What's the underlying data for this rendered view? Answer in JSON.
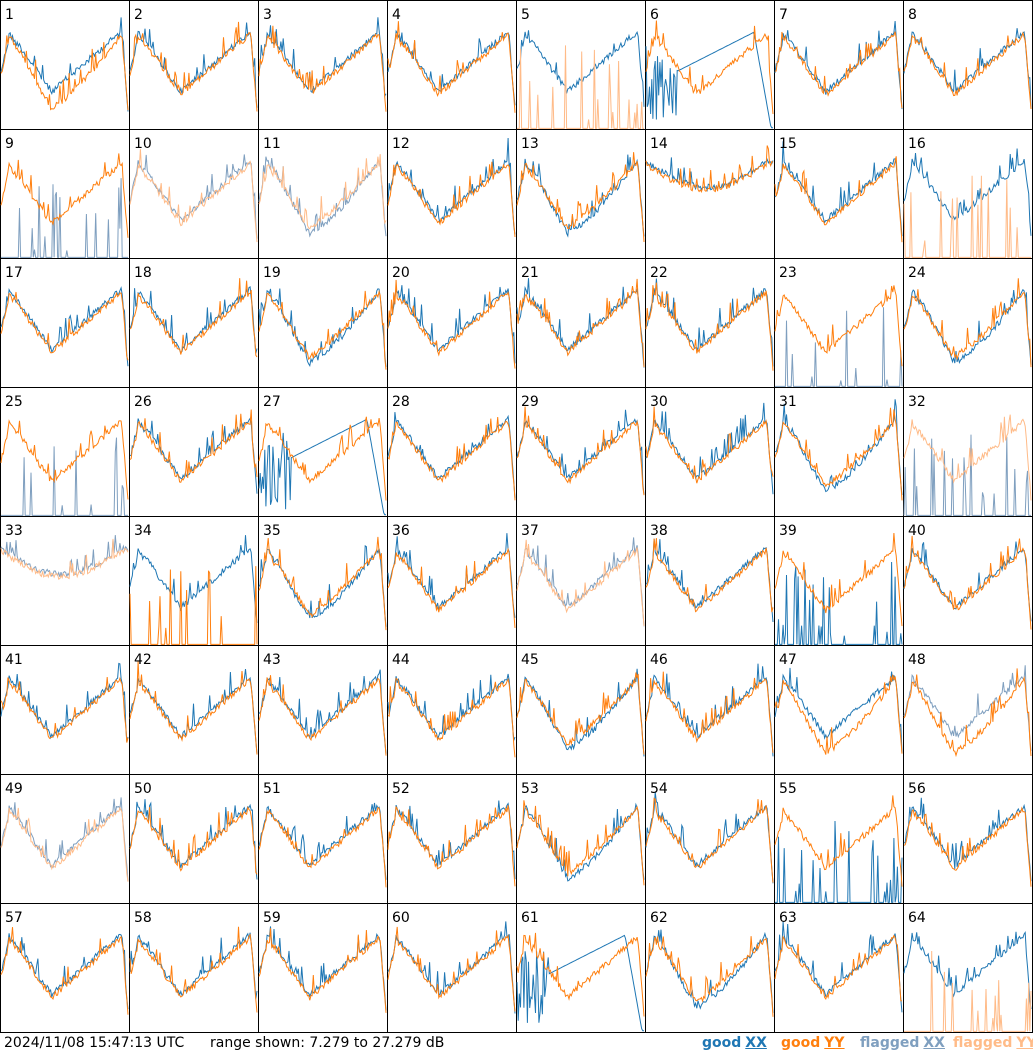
{
  "footer": {
    "timestamp": "2024/11/08 15:47:13 UTC",
    "range": "range shown: 7.279 to 27.279 dB",
    "legend": [
      {
        "word": "good",
        "pol": "XX",
        "color": "#1f77b4"
      },
      {
        "word": "good",
        "pol": "YY",
        "color": "#ff7f0e"
      },
      {
        "word": "flagged",
        "pol": "XX",
        "color": "#7f9fbf"
      },
      {
        "word": "flagged",
        "pol": "YY",
        "color": "#ffbb88"
      }
    ]
  },
  "colors": {
    "good_xx": "#1f77b4",
    "good_yy": "#ff7f0e",
    "flagged_xx": "#7f9fbf",
    "flagged_yy": "#ffbb88"
  },
  "chart_data": {
    "type": "line",
    "grid": [
      8,
      8
    ],
    "ylim": [
      7.279,
      27.279
    ],
    "yunit": "dB",
    "panels": [
      {
        "id": "1",
        "xx": "good",
        "yy": "good",
        "shape": "low"
      },
      {
        "id": "2",
        "xx": "good",
        "yy": "good",
        "shape": "normal"
      },
      {
        "id": "3",
        "xx": "good",
        "yy": "good",
        "shape": "normal"
      },
      {
        "id": "4",
        "xx": "good",
        "yy": "good",
        "shape": "normal"
      },
      {
        "id": "5",
        "xx": "good",
        "yy": "flagged",
        "shape": "normal",
        "yyshape": "spikes"
      },
      {
        "id": "6",
        "xx": "good",
        "yy": "good",
        "shape": "dead-xx"
      },
      {
        "id": "7",
        "xx": "good",
        "yy": "good",
        "shape": "normal"
      },
      {
        "id": "8",
        "xx": "good",
        "yy": "good",
        "shape": "normal"
      },
      {
        "id": "9",
        "xx": "flagged",
        "yy": "good",
        "shape": "normal",
        "xxshape": "spikes"
      },
      {
        "id": "10",
        "xx": "flagged",
        "yy": "flagged",
        "shape": "normal"
      },
      {
        "id": "11",
        "xx": "flagged",
        "yy": "flagged",
        "shape": "deep"
      },
      {
        "id": "12",
        "xx": "good",
        "yy": "good",
        "shape": "normal"
      },
      {
        "id": "13",
        "xx": "good",
        "yy": "good",
        "shape": "deep"
      },
      {
        "id": "14",
        "xx": "good",
        "yy": "good",
        "shape": "flat"
      },
      {
        "id": "15",
        "xx": "good",
        "yy": "good",
        "shape": "normal"
      },
      {
        "id": "16",
        "xx": "good",
        "yy": "flagged",
        "shape": "normal",
        "yyshape": "spikes"
      },
      {
        "id": "17",
        "xx": "good",
        "yy": "good",
        "shape": "normal"
      },
      {
        "id": "18",
        "xx": "good",
        "yy": "good",
        "shape": "normal"
      },
      {
        "id": "19",
        "xx": "good",
        "yy": "good",
        "shape": "deep"
      },
      {
        "id": "20",
        "xx": "good",
        "yy": "good",
        "shape": "normal"
      },
      {
        "id": "21",
        "xx": "good",
        "yy": "good",
        "shape": "normal"
      },
      {
        "id": "22",
        "xx": "good",
        "yy": "good",
        "shape": "normal"
      },
      {
        "id": "23",
        "xx": "flagged",
        "yy": "good",
        "shape": "normal",
        "xxshape": "spikes"
      },
      {
        "id": "24",
        "xx": "good",
        "yy": "good",
        "shape": "deep"
      },
      {
        "id": "25",
        "xx": "flagged",
        "yy": "good",
        "shape": "normal",
        "xxshape": "spikes"
      },
      {
        "id": "26",
        "xx": "good",
        "yy": "good",
        "shape": "normal"
      },
      {
        "id": "27",
        "xx": "good",
        "yy": "good",
        "shape": "dead-xx"
      },
      {
        "id": "28",
        "xx": "good",
        "yy": "good",
        "shape": "normal"
      },
      {
        "id": "29",
        "xx": "good",
        "yy": "good",
        "shape": "normal"
      },
      {
        "id": "30",
        "xx": "good",
        "yy": "good",
        "shape": "normal"
      },
      {
        "id": "31",
        "xx": "good",
        "yy": "good",
        "shape": "deep"
      },
      {
        "id": "32",
        "xx": "flagged",
        "yy": "flagged",
        "shape": "normal",
        "xxshape": "spikes"
      },
      {
        "id": "33",
        "xx": "flagged",
        "yy": "flagged",
        "shape": "flat"
      },
      {
        "id": "34",
        "xx": "good",
        "yy": "good",
        "shape": "normal",
        "yyshape": "spikes"
      },
      {
        "id": "35",
        "xx": "good",
        "yy": "good",
        "shape": "deep"
      },
      {
        "id": "36",
        "xx": "good",
        "yy": "good",
        "shape": "normal"
      },
      {
        "id": "37",
        "xx": "flagged",
        "yy": "flagged",
        "shape": "normal"
      },
      {
        "id": "38",
        "xx": "good",
        "yy": "good",
        "shape": "normal"
      },
      {
        "id": "39",
        "xx": "good",
        "yy": "good",
        "shape": "normal",
        "xxshape": "spikes"
      },
      {
        "id": "40",
        "xx": "good",
        "yy": "good",
        "shape": "normal"
      },
      {
        "id": "41",
        "xx": "good",
        "yy": "good",
        "shape": "normal"
      },
      {
        "id": "42",
        "xx": "good",
        "yy": "good",
        "shape": "normal"
      },
      {
        "id": "43",
        "xx": "good",
        "yy": "good",
        "shape": "normal"
      },
      {
        "id": "44",
        "xx": "good",
        "yy": "good",
        "shape": "normal"
      },
      {
        "id": "45",
        "xx": "good",
        "yy": "good",
        "shape": "deep"
      },
      {
        "id": "46",
        "xx": "good",
        "yy": "good",
        "shape": "normal"
      },
      {
        "id": "47",
        "xx": "good",
        "yy": "good",
        "shape": "low"
      },
      {
        "id": "48",
        "xx": "flagged",
        "yy": "good",
        "shape": "low"
      },
      {
        "id": "49",
        "xx": "flagged",
        "yy": "flagged",
        "shape": "normal"
      },
      {
        "id": "50",
        "xx": "good",
        "yy": "good",
        "shape": "normal"
      },
      {
        "id": "51",
        "xx": "good",
        "yy": "good",
        "shape": "normal"
      },
      {
        "id": "52",
        "xx": "good",
        "yy": "good",
        "shape": "normal"
      },
      {
        "id": "53",
        "xx": "good",
        "yy": "good",
        "shape": "deep"
      },
      {
        "id": "54",
        "xx": "good",
        "yy": "good",
        "shape": "normal"
      },
      {
        "id": "55",
        "xx": "good",
        "yy": "good",
        "shape": "normal",
        "xxshape": "spikes"
      },
      {
        "id": "56",
        "xx": "good",
        "yy": "good",
        "shape": "normal"
      },
      {
        "id": "57",
        "xx": "good",
        "yy": "good",
        "shape": "normal"
      },
      {
        "id": "58",
        "xx": "good",
        "yy": "good",
        "shape": "normal"
      },
      {
        "id": "59",
        "xx": "good",
        "yy": "good",
        "shape": "normal"
      },
      {
        "id": "60",
        "xx": "good",
        "yy": "good",
        "shape": "normal"
      },
      {
        "id": "61",
        "xx": "good",
        "yy": "good",
        "shape": "dead-xx"
      },
      {
        "id": "62",
        "xx": "good",
        "yy": "good",
        "shape": "deep"
      },
      {
        "id": "63",
        "xx": "good",
        "yy": "good",
        "shape": "normal"
      },
      {
        "id": "64",
        "xx": "good",
        "yy": "flagged",
        "shape": "normal",
        "yyshape": "spikes"
      }
    ]
  }
}
